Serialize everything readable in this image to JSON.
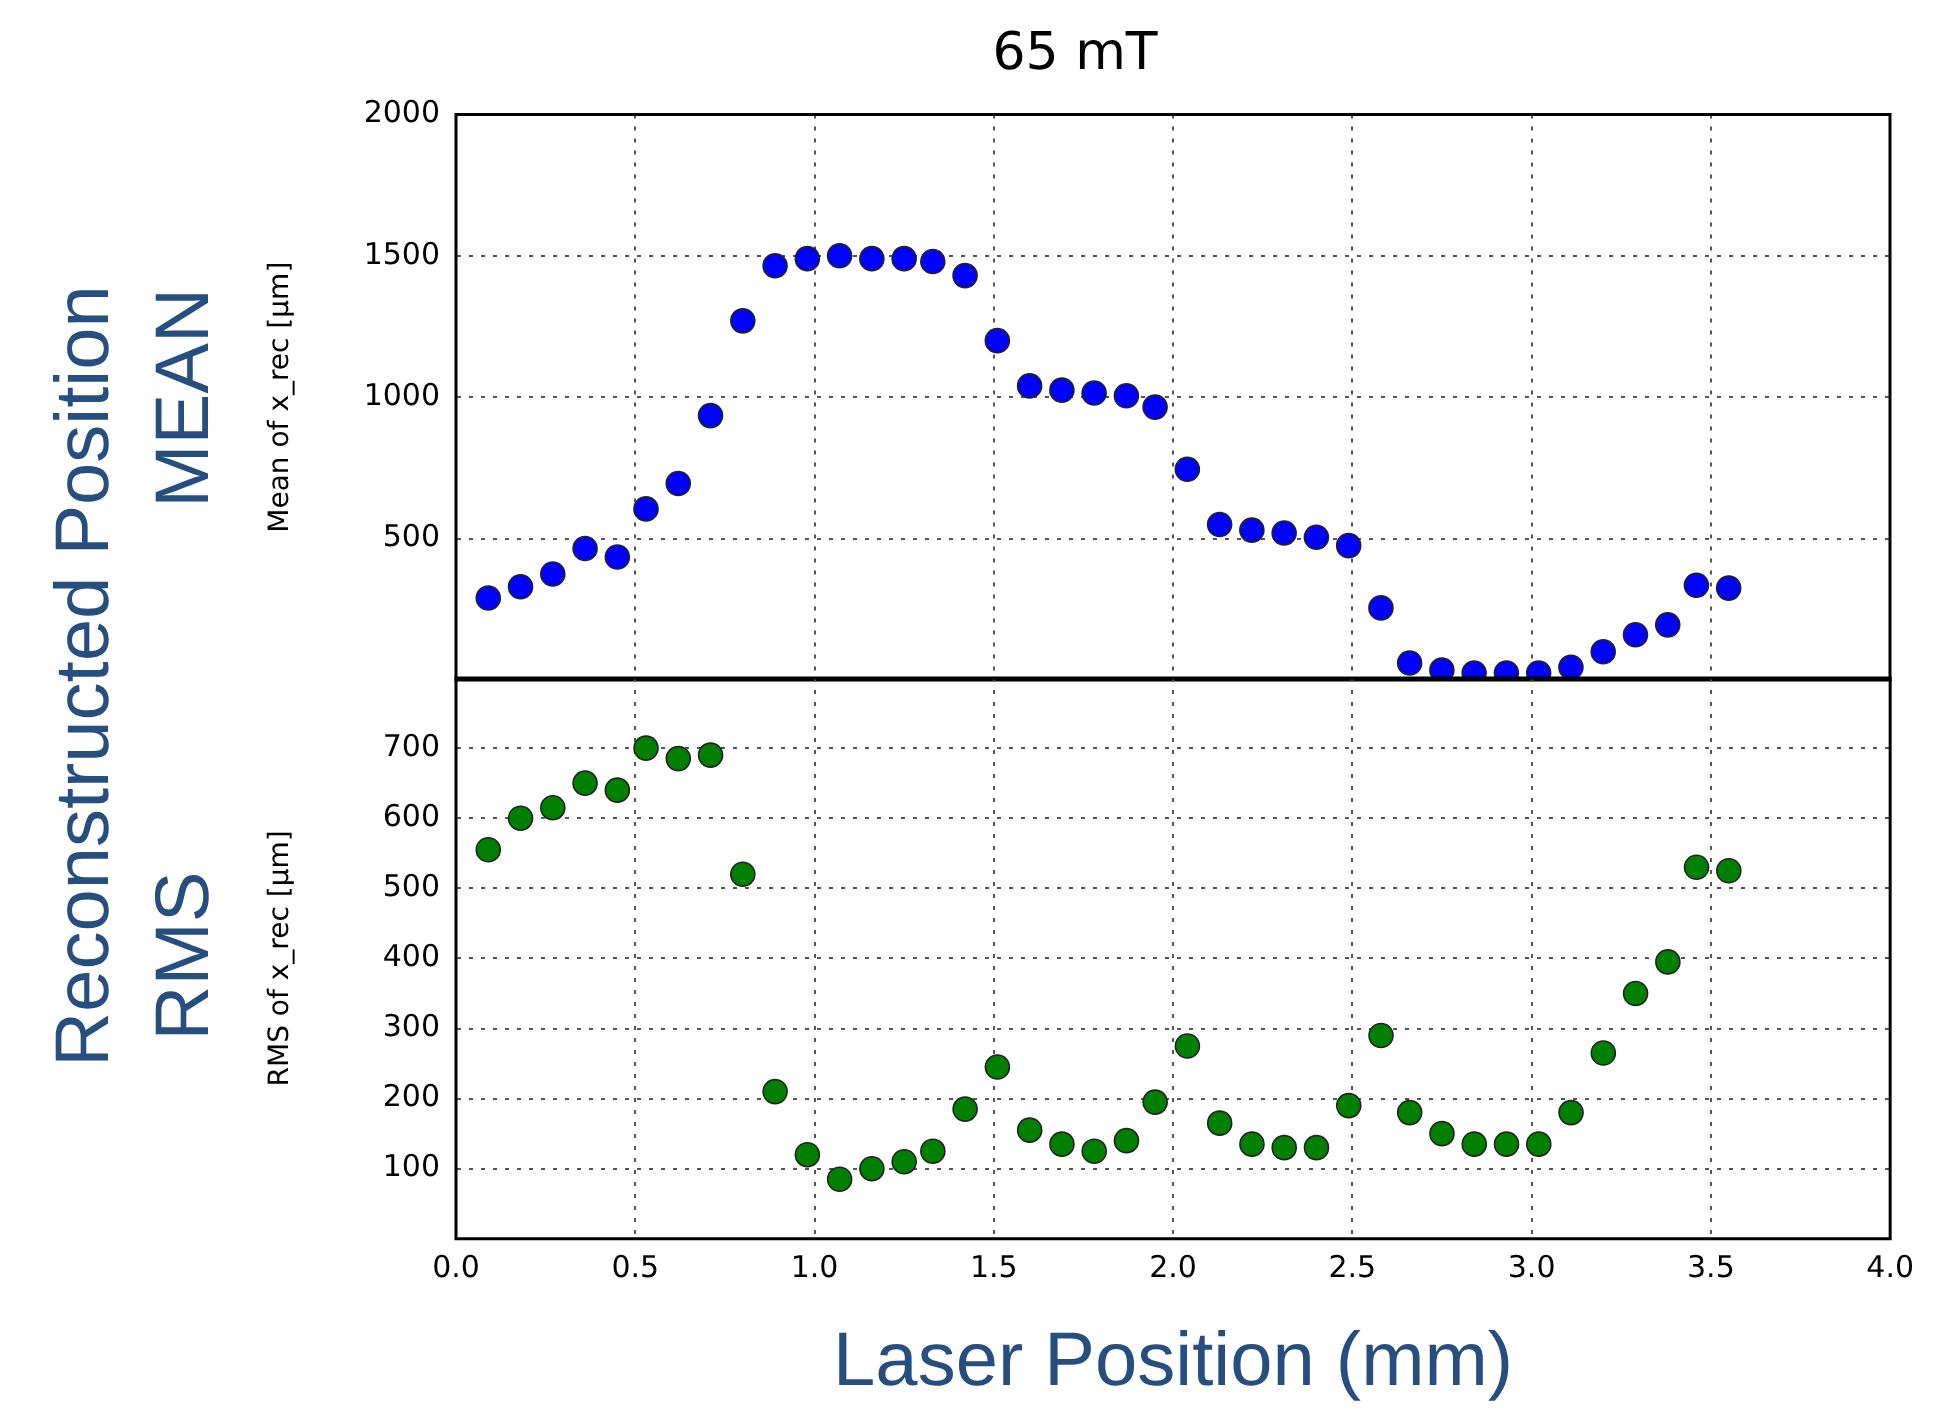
{
  "chart_data": [
    {
      "type": "scatter",
      "title": "65 mT",
      "ylabel": "Mean of x_rec [μm]",
      "annotations": [
        "Reconstructed Position",
        "MEAN"
      ],
      "x": [
        0.09,
        0.18,
        0.27,
        0.36,
        0.45,
        0.53,
        0.62,
        0.71,
        0.8,
        0.89,
        0.98,
        1.07,
        1.16,
        1.25,
        1.33,
        1.42,
        1.51,
        1.6,
        1.69,
        1.78,
        1.87,
        1.95,
        2.04,
        2.13,
        2.22,
        2.31,
        2.4,
        2.49,
        2.58,
        2.66,
        2.75,
        2.84,
        2.93,
        3.02,
        3.11,
        3.2,
        3.29,
        3.38,
        3.46,
        3.55
      ],
      "series": [
        {
          "color": "#0000ff",
          "values": [
            290,
            330,
            375,
            465,
            435,
            605,
            695,
            935,
            1270,
            1465,
            1490,
            1500,
            1490,
            1490,
            1480,
            1430,
            1200,
            1040,
            1025,
            1015,
            1005,
            965,
            745,
            550,
            530,
            520,
            505,
            475,
            255,
            60,
            35,
            25,
            25,
            25,
            45,
            100,
            160,
            195,
            335,
            325
          ]
        }
      ],
      "xlim": [
        0,
        4
      ],
      "xticks": [
        {
          "value": 0,
          "label": null
        },
        {
          "value": 0.5,
          "label": null
        },
        {
          "value": 1,
          "label": null
        },
        {
          "value": 1.5,
          "label": null
        },
        {
          "value": 2,
          "label": null
        },
        {
          "value": 2.5,
          "label": null
        },
        {
          "value": 3,
          "label": null
        },
        {
          "value": 3.5,
          "label": null
        },
        {
          "value": 4,
          "label": null
        }
      ],
      "ylim": [
        0,
        2000
      ],
      "yticks": [
        500,
        1000,
        1500,
        2000
      ],
      "tick_labels": "y",
      "grid": true,
      "legend": false,
      "marker": "circle"
    },
    {
      "type": "scatter",
      "xlabel": "Laser Position (mm)",
      "ylabel": "RMS of x_rec [μm]",
      "annotations": [
        "RMS"
      ],
      "x": [
        0.09,
        0.18,
        0.27,
        0.36,
        0.45,
        0.53,
        0.62,
        0.71,
        0.8,
        0.89,
        0.98,
        1.07,
        1.16,
        1.25,
        1.33,
        1.42,
        1.51,
        1.6,
        1.69,
        1.78,
        1.87,
        1.95,
        2.04,
        2.13,
        2.22,
        2.31,
        2.4,
        2.49,
        2.58,
        2.66,
        2.75,
        2.84,
        2.93,
        3.02,
        3.11,
        3.2,
        3.29,
        3.38,
        3.46,
        3.55
      ],
      "series": [
        {
          "color": "#008000",
          "values": [
            555,
            600,
            615,
            650,
            640,
            700,
            685,
            690,
            520,
            210,
            120,
            85,
            100,
            110,
            125,
            185,
            245,
            155,
            135,
            125,
            140,
            195,
            275,
            165,
            135,
            130,
            130,
            190,
            290,
            180,
            150,
            135,
            135,
            135,
            180,
            265,
            350,
            395,
            530,
            525
          ]
        }
      ],
      "xlim": [
        0,
        4
      ],
      "xticks": [
        {
          "value": 0,
          "label": "0.0"
        },
        {
          "value": 0.5,
          "label": "0.5"
        },
        {
          "value": 1,
          "label": "1.0"
        },
        {
          "value": 1.5,
          "label": "1.5"
        },
        {
          "value": 2,
          "label": "2.0"
        },
        {
          "value": 2.5,
          "label": "2.5"
        },
        {
          "value": 3,
          "label": "3.0"
        },
        {
          "value": 3.5,
          "label": "3.5"
        },
        {
          "value": 4,
          "label": "4.0"
        }
      ],
      "ylim": [
        0,
        800
      ],
      "yticks": [
        100,
        200,
        300,
        400,
        500,
        600,
        700
      ],
      "grid": true,
      "legend": false,
      "marker": "circle"
    }
  ]
}
